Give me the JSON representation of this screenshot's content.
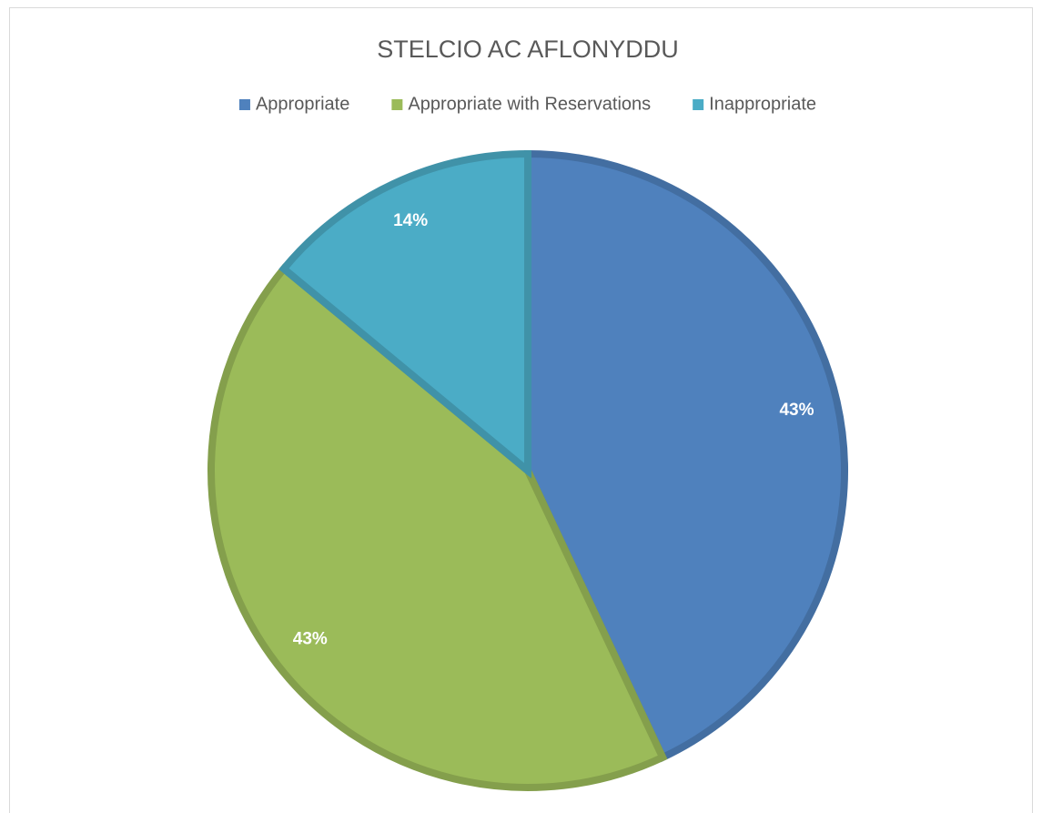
{
  "chart_data": {
    "type": "pie",
    "title": "STELCIO AC AFLONYDDU",
    "categories": [
      "Appropriate",
      "Appropriate with Reservations",
      "Inappropriate"
    ],
    "values": [
      43,
      43,
      14
    ],
    "value_labels": [
      "43%",
      "43%",
      "14%"
    ],
    "colors": [
      "#4f81bd",
      "#9bbb59",
      "#4bacc6"
    ],
    "legend": "top"
  }
}
